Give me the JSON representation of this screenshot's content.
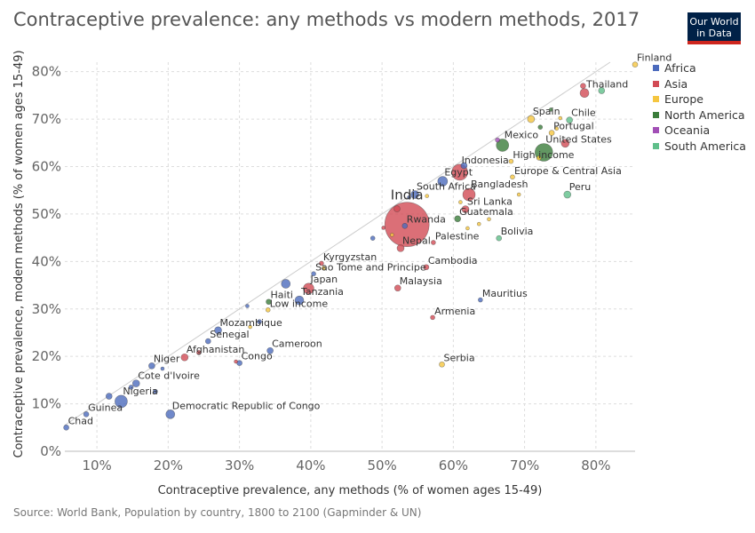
{
  "title": "Contraceptive prevalence: any methods vs modern methods, 2017",
  "logo": {
    "line1": "Our World",
    "line2": "in Data"
  },
  "source": "Source: World Bank, Population by country, 1800 to 2100 (Gapminder & UN)",
  "colors": {
    "Africa": "#4c6bbd",
    "Asia": "#d24b55",
    "Europe": "#f5c640",
    "North America": "#3b7d3b",
    "Oceania": "#a24fb6",
    "South America": "#5fbf8a"
  },
  "legend": [
    "Africa",
    "Asia",
    "Europe",
    "North America",
    "Oceania",
    "South America"
  ],
  "chart_data": {
    "type": "scatter",
    "xlabel": "Contraceptive prevalence, any methods (% of women ages 15-49)",
    "ylabel": "Contraceptive prevalence, modern methods (% of women ages 15-49)",
    "xlim": [
      5.5,
      85.5
    ],
    "ylim": [
      0,
      82
    ],
    "xticks": [
      "10%",
      "20%",
      "30%",
      "40%",
      "50%",
      "60%",
      "70%",
      "80%"
    ],
    "yticks": [
      "0%",
      "10%",
      "20%",
      "30%",
      "40%",
      "50%",
      "60%",
      "70%",
      "80%"
    ],
    "grid": true,
    "legend_position": "right",
    "points": [
      {
        "label": "Chad",
        "x": 5.7,
        "y": 5.0,
        "r": 3,
        "c": "Africa"
      },
      {
        "label": "Guinea",
        "x": 8.5,
        "y": 7.8,
        "r": 3,
        "c": "Africa"
      },
      {
        "label": "Nigeria",
        "x": 13.4,
        "y": 10.5,
        "r": 7,
        "c": "Africa"
      },
      {
        "label": "Cote d'Ivoire",
        "x": 15.5,
        "y": 14.3,
        "r": 4,
        "c": "Africa"
      },
      {
        "label": "Niger",
        "x": 17.7,
        "y": 18.0,
        "r": 3.5,
        "c": "Africa"
      },
      {
        "label": "Afghanistan",
        "x": 22.3,
        "y": 19.8,
        "r": 4,
        "c": "Asia"
      },
      {
        "label": "Democratic Republic of Congo",
        "x": 20.3,
        "y": 7.8,
        "r": 5,
        "c": "Africa"
      },
      {
        "label": "Senegal",
        "x": 25.6,
        "y": 23.2,
        "r": 3,
        "c": "Africa"
      },
      {
        "label": "Mozambique",
        "x": 27.0,
        "y": 25.5,
        "r": 4,
        "c": "Africa"
      },
      {
        "label": "Congo",
        "x": 30.0,
        "y": 18.6,
        "r": 3,
        "c": "Africa"
      },
      {
        "label": "Cameroon",
        "x": 34.3,
        "y": 21.2,
        "r": 3.5,
        "c": "Africa"
      },
      {
        "label": "Low income",
        "x": 34.0,
        "y": 29.8,
        "r": 2.5,
        "c": "Europe"
      },
      {
        "label": "Haiti",
        "x": 34.1,
        "y": 31.5,
        "r": 3,
        "c": "North America"
      },
      {
        "label": "Tanzania",
        "x": 38.4,
        "y": 31.8,
        "r": 5,
        "c": "Africa"
      },
      {
        "label": "Japan",
        "x": 39.7,
        "y": 34.3,
        "r": 6,
        "c": "Asia"
      },
      {
        "label": "Sao Tome and Principe",
        "x": 40.4,
        "y": 37.4,
        "r": 2.5,
        "c": "Africa"
      },
      {
        "label": "Kyrgyzstan",
        "x": 41.5,
        "y": 39.6,
        "r": 2.5,
        "c": "Asia"
      },
      {
        "label": "Malaysia",
        "x": 52.2,
        "y": 34.4,
        "r": 3.5,
        "c": "Asia"
      },
      {
        "label": "Nepal",
        "x": 52.6,
        "y": 42.8,
        "r": 4,
        "c": "Asia"
      },
      {
        "label": "India",
        "x": 53.5,
        "y": 47.8,
        "r": 25,
        "c": "Asia"
      },
      {
        "label": "Rwanda",
        "x": 53.2,
        "y": 47.5,
        "r": 3,
        "c": "Africa"
      },
      {
        "label": "South Africa",
        "x": 54.6,
        "y": 54.1,
        "r": 4.5,
        "c": "Africa"
      },
      {
        "label": "Palestine",
        "x": 57.2,
        "y": 44.0,
        "r": 2.5,
        "c": "Asia"
      },
      {
        "label": "Cambodia",
        "x": 56.2,
        "y": 38.8,
        "r": 3,
        "c": "Asia"
      },
      {
        "label": "Armenia",
        "x": 57.1,
        "y": 28.2,
        "r": 2.5,
        "c": "Asia"
      },
      {
        "label": "Serbia",
        "x": 58.4,
        "y": 18.3,
        "r": 3,
        "c": "Europe"
      },
      {
        "label": "Egypt",
        "x": 58.5,
        "y": 56.9,
        "r": 5.5,
        "c": "Africa"
      },
      {
        "label": "Indonesia",
        "x": 60.9,
        "y": 58.8,
        "r": 9,
        "c": "Asia"
      },
      {
        "label": "Bangladesh",
        "x": 62.2,
        "y": 54.1,
        "r": 7,
        "c": "Asia"
      },
      {
        "label": "Sri Lanka",
        "x": 61.7,
        "y": 51.0,
        "r": 4,
        "c": "Asia"
      },
      {
        "label": "Guatemala",
        "x": 60.6,
        "y": 49.0,
        "r": 3.5,
        "c": "North America"
      },
      {
        "label": "Bolivia",
        "x": 66.4,
        "y": 44.9,
        "r": 3,
        "c": "South America"
      },
      {
        "label": "Mauritius",
        "x": 63.8,
        "y": 31.9,
        "r": 2.5,
        "c": "Africa"
      },
      {
        "label": "High income",
        "x": 68.1,
        "y": 61.1,
        "r": 2.5,
        "c": "Europe"
      },
      {
        "label": "Europe & Central Asia",
        "x": 68.3,
        "y": 57.8,
        "r": 2.5,
        "c": "Europe"
      },
      {
        "label": "Mexico",
        "x": 66.9,
        "y": 64.5,
        "r": 7,
        "c": "North America"
      },
      {
        "label": "Spain",
        "x": 70.9,
        "y": 70.0,
        "r": 4,
        "c": "Europe"
      },
      {
        "label": "Portugal",
        "x": 73.8,
        "y": 67.1,
        "r": 3,
        "c": "Europe"
      },
      {
        "label": "United States",
        "x": 72.7,
        "y": 63.0,
        "r": 10,
        "c": "North America"
      },
      {
        "label": "Chile",
        "x": 76.3,
        "y": 69.8,
        "r": 3.5,
        "c": "South America"
      },
      {
        "label": "Peru",
        "x": 76.0,
        "y": 54.1,
        "r": 4,
        "c": "South America"
      },
      {
        "label": "Thailand",
        "x": 78.4,
        "y": 75.5,
        "r": 5,
        "c": "Asia"
      },
      {
        "label": "Finland",
        "x": 85.5,
        "y": 81.5,
        "r": 3,
        "c": "Europe"
      }
    ],
    "unlabeled": [
      {
        "x": 11.7,
        "y": 11.6,
        "r": 3.5,
        "c": "Africa"
      },
      {
        "x": 14.8,
        "y": 13.5,
        "r": 2.5,
        "c": "Africa"
      },
      {
        "x": 18.2,
        "y": 12.6,
        "r": 2.5,
        "c": "Africa"
      },
      {
        "x": 19.2,
        "y": 17.4,
        "r": 2,
        "c": "Africa"
      },
      {
        "x": 24.3,
        "y": 20.8,
        "r": 2.5,
        "c": "Asia"
      },
      {
        "x": 29.5,
        "y": 18.9,
        "r": 2,
        "c": "Asia"
      },
      {
        "x": 31.5,
        "y": 26.2,
        "r": 2,
        "c": "Europe"
      },
      {
        "x": 32.8,
        "y": 27.3,
        "r": 2.5,
        "c": "Africa"
      },
      {
        "x": 31.1,
        "y": 30.6,
        "r": 2,
        "c": "Africa"
      },
      {
        "x": 36.5,
        "y": 35.3,
        "r": 5,
        "c": "Africa"
      },
      {
        "x": 41.8,
        "y": 38.6,
        "r": 2,
        "c": "Europe"
      },
      {
        "x": 48.7,
        "y": 44.9,
        "r": 2.5,
        "c": "Africa"
      },
      {
        "x": 50.2,
        "y": 47.1,
        "r": 2,
        "c": "Asia"
      },
      {
        "x": 51.4,
        "y": 45.6,
        "r": 2,
        "c": "Europe"
      },
      {
        "x": 52.1,
        "y": 51.1,
        "r": 3.5,
        "c": "Asia"
      },
      {
        "x": 53.8,
        "y": 53.5,
        "r": 2,
        "c": "Africa"
      },
      {
        "x": 56.3,
        "y": 53.8,
        "r": 2,
        "c": "Europe"
      },
      {
        "x": 61.0,
        "y": 52.5,
        "r": 2,
        "c": "Europe"
      },
      {
        "x": 62.0,
        "y": 47.0,
        "r": 2,
        "c": "Europe"
      },
      {
        "x": 63.6,
        "y": 47.9,
        "r": 2,
        "c": "Europe"
      },
      {
        "x": 65.0,
        "y": 48.9,
        "r": 2,
        "c": "Europe"
      },
      {
        "x": 61.5,
        "y": 60.2,
        "r": 3.5,
        "c": "Africa"
      },
      {
        "x": 66.2,
        "y": 65.6,
        "r": 2.5,
        "c": "Oceania"
      },
      {
        "x": 69.2,
        "y": 54.1,
        "r": 2,
        "c": "Europe"
      },
      {
        "x": 72.2,
        "y": 68.3,
        "r": 2.5,
        "c": "North America"
      },
      {
        "x": 73.7,
        "y": 72.0,
        "r": 2,
        "c": "North America"
      },
      {
        "x": 75.7,
        "y": 64.9,
        "r": 4.5,
        "c": "Asia"
      },
      {
        "x": 75.0,
        "y": 70.2,
        "r": 2,
        "c": "Europe"
      },
      {
        "x": 74.5,
        "y": 68.0,
        "r": 2,
        "c": "Europe"
      },
      {
        "x": 78.2,
        "y": 77.0,
        "r": 3,
        "c": "Asia"
      },
      {
        "x": 80.8,
        "y": 76.0,
        "r": 3.5,
        "c": "South America"
      },
      {
        "x": 72.0,
        "y": 61.8,
        "r": 2.5,
        "c": "Europe"
      }
    ]
  }
}
